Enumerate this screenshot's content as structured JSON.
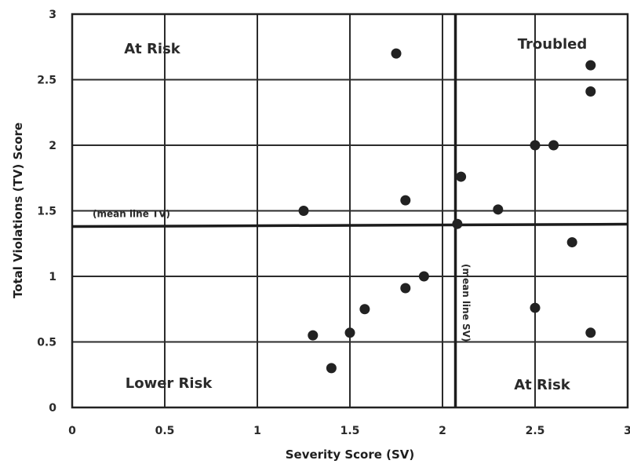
{
  "chart_data": {
    "type": "scatter",
    "title": "",
    "xlabel": "Severity Score (SV)",
    "ylabel": "Total Violations (TV) Score",
    "xlim": [
      0,
      3
    ],
    "ylim": [
      0,
      3
    ],
    "x_ticks": [
      "0",
      "0.5",
      "1",
      "1.5",
      "2",
      "2.5",
      "3"
    ],
    "y_ticks": [
      "0",
      "0.5",
      "1",
      "1.5",
      "2",
      "2.5",
      "3"
    ],
    "grid": true,
    "points": [
      {
        "x": 1.25,
        "y": 1.5
      },
      {
        "x": 1.3,
        "y": 0.55
      },
      {
        "x": 1.4,
        "y": 0.3
      },
      {
        "x": 1.5,
        "y": 0.57
      },
      {
        "x": 1.58,
        "y": 0.75
      },
      {
        "x": 1.75,
        "y": 2.7
      },
      {
        "x": 1.8,
        "y": 1.58
      },
      {
        "x": 1.8,
        "y": 0.91
      },
      {
        "x": 1.9,
        "y": 1.0
      },
      {
        "x": 2.08,
        "y": 1.4
      },
      {
        "x": 2.1,
        "y": 1.76
      },
      {
        "x": 2.3,
        "y": 1.51
      },
      {
        "x": 2.5,
        "y": 2.0
      },
      {
        "x": 2.5,
        "y": 0.76
      },
      {
        "x": 2.6,
        "y": 2.0
      },
      {
        "x": 2.7,
        "y": 1.26
      },
      {
        "x": 2.8,
        "y": 2.61
      },
      {
        "x": 2.8,
        "y": 2.41
      },
      {
        "x": 2.8,
        "y": 0.57
      }
    ],
    "mean_lines": {
      "tv": {
        "value": 1.38,
        "label": "(mean line TV)"
      },
      "sv": {
        "value": 2.07,
        "label": "(mean line SV)"
      }
    },
    "quadrant_labels": [
      {
        "text": "At Risk",
        "position": "top-left"
      },
      {
        "text": "Troubled",
        "position": "top-right"
      },
      {
        "text": "Lower Risk",
        "position": "bottom-left"
      },
      {
        "text": "At Risk",
        "position": "bottom-right"
      }
    ]
  }
}
